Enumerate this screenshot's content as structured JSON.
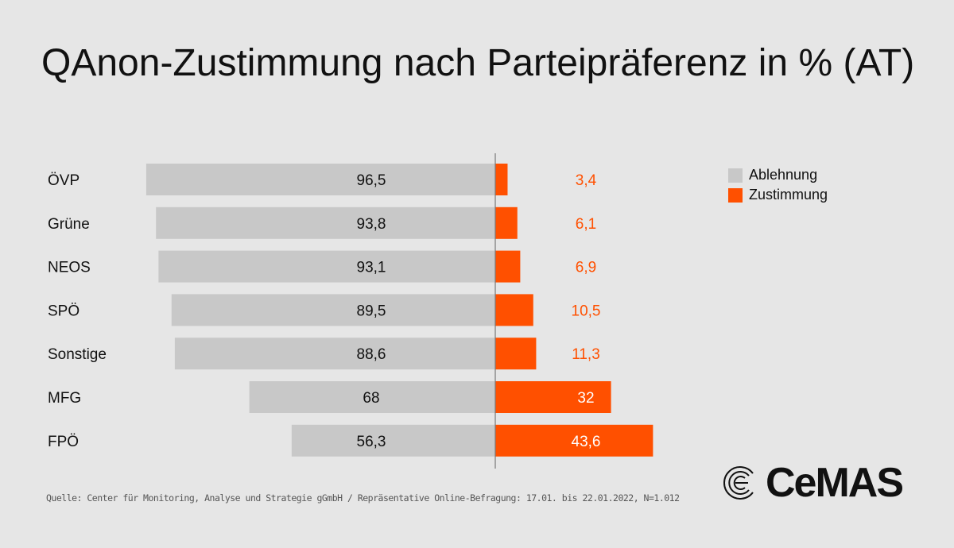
{
  "chart_data": {
    "type": "bar",
    "orientation": "horizontal-diverging",
    "title": "QAnon-Zustimmung nach Parteipräferenz in % (AT)",
    "categories": [
      "ÖVP",
      "Grüne",
      "NEOS",
      "SPÖ",
      "Sonstige",
      "MFG",
      "FPÖ"
    ],
    "series": [
      {
        "name": "Ablehnung",
        "color": "#c8c8c8",
        "values": [
          96.5,
          93.8,
          93.1,
          89.5,
          88.6,
          68,
          56.3
        ],
        "labels": [
          "96,5",
          "93,8",
          "93,1",
          "89,5",
          "88,6",
          "68",
          "56,3"
        ]
      },
      {
        "name": "Zustimmung",
        "color": "#ff5000",
        "values": [
          3.4,
          6.1,
          6.9,
          10.5,
          11.3,
          32,
          43.6
        ],
        "labels": [
          "3,4",
          "6,1",
          "6,9",
          "10,5",
          "11,3",
          "32",
          "43,6"
        ]
      }
    ],
    "xlim": [
      0,
      100
    ],
    "legend": "top-right"
  },
  "source": "Quelle: Center für Monitoring, Analyse und Strategie gGmbH / Repräsentative Online-Befragung: 17.01. bis 22.01.2022, N=1.012",
  "logo": "CeMAS"
}
